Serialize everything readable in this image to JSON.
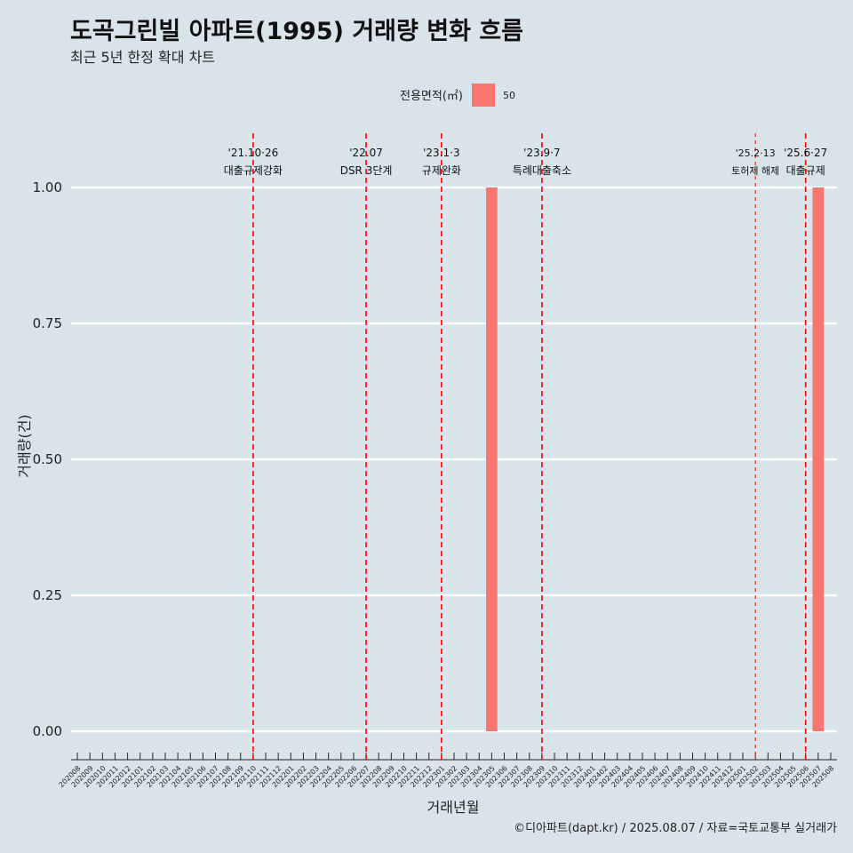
{
  "chart_data": {
    "type": "bar",
    "title": "도곡그린빌 아파트(1995) 거래량 변화 흐름",
    "subtitle": "최근 5년 한정 확대 차트",
    "xlabel": "거래년월",
    "ylabel": "거래량(건)",
    "ylim": [
      0,
      1
    ],
    "yticks": [
      "0.00",
      "0.25",
      "0.50",
      "0.75",
      "1.00"
    ],
    "categories": [
      "202008",
      "202009",
      "202010",
      "202011",
      "202012",
      "202101",
      "202102",
      "202103",
      "202104",
      "202105",
      "202106",
      "202107",
      "202108",
      "202109",
      "202110",
      "202111",
      "202112",
      "202201",
      "202202",
      "202203",
      "202204",
      "202205",
      "202206",
      "202207",
      "202208",
      "202209",
      "202210",
      "202211",
      "202212",
      "202301",
      "202302",
      "202303",
      "202304",
      "202305",
      "202306",
      "202307",
      "202308",
      "202309",
      "202310",
      "202311",
      "202312",
      "202401",
      "202402",
      "202403",
      "202404",
      "202405",
      "202406",
      "202407",
      "202408",
      "202409",
      "202410",
      "202411",
      "202412",
      "202501",
      "202502",
      "202503",
      "202504",
      "202505",
      "202506",
      "202507",
      "202508"
    ],
    "series": [
      {
        "name": "50",
        "color": "#f8766d",
        "points": [
          {
            "x": "202305",
            "y": 1
          },
          {
            "x": "202507",
            "y": 1
          }
        ]
      }
    ],
    "legend": {
      "title": "전용면적(㎡)",
      "entries": [
        "50"
      ],
      "placement": "top"
    },
    "events": [
      {
        "date": "'21.10·26",
        "label": "대출규제강화",
        "x": "202110",
        "style": "dashed",
        "size": "normal"
      },
      {
        "date": "'22.07",
        "label": "DSR 3단계",
        "x": "202207",
        "style": "dashed",
        "size": "normal"
      },
      {
        "date": "'23.1·3",
        "label": "규제완화",
        "x": "202301",
        "style": "dashed",
        "size": "normal"
      },
      {
        "date": "'23.9·7",
        "label": "특례대출축소",
        "x": "202309",
        "style": "dashed",
        "size": "normal"
      },
      {
        "date": "'25.2·13",
        "label": "토허제 해제",
        "x": "202502",
        "style": "thin-dashed",
        "size": "small"
      },
      {
        "date": "'25.6·27",
        "label": "대출규제",
        "x": "202506",
        "style": "dashed",
        "size": "normal"
      }
    ],
    "event_color": "#ff0000",
    "grid": true
  },
  "caption": "©디아파트(dapt.kr) / 2025.08.07 / 자료=국토교통부 실거래가"
}
